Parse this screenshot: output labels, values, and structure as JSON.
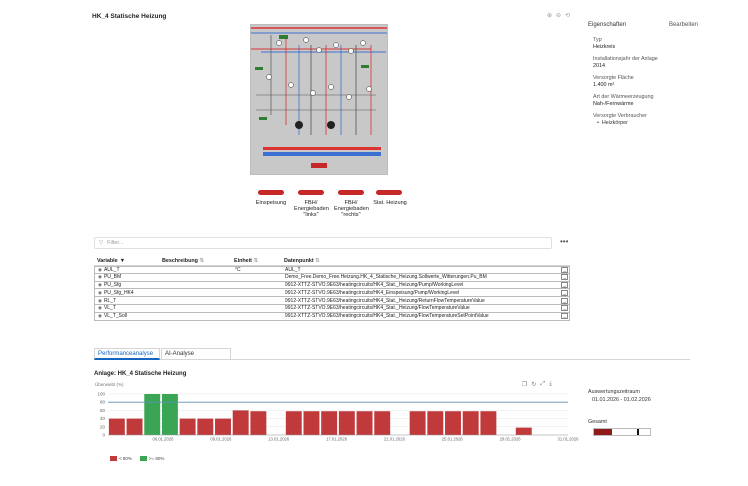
{
  "page": {
    "title": "HK_4 Statische Heizung"
  },
  "header_icons": [
    "zoom-in-icon",
    "zoom-out-icon",
    "reset-icon"
  ],
  "schematic": {
    "labels": [
      "Einspeisung",
      "FBH/\nEnergiebaden\n\"links\"",
      "FBH/\nEnergiebaden\n\"rechts\"",
      "Stat. Heizung"
    ]
  },
  "properties": {
    "heading": "Eigenschaften",
    "edit_label": "Bearbeiten",
    "items": [
      {
        "label": "Typ",
        "value": "Heizkreis"
      },
      {
        "label": "Installationsjahr der Anlage",
        "value": "2014"
      },
      {
        "label": "Versorgte Fläche",
        "value": "1.400 m²"
      },
      {
        "label": "Art der Wärmeerzeugung",
        "value": "Nah-/Fernwärme"
      },
      {
        "label": "Versorgte Verbraucher",
        "list": [
          "Heizkörper"
        ]
      }
    ]
  },
  "filter": {
    "placeholder": "Filter..."
  },
  "table": {
    "columns": [
      "Variable",
      "Beschreibung",
      "Einheit",
      "Datenpunkt"
    ],
    "rows": [
      {
        "variable": "AUL_T",
        "description": "",
        "unit": "°C",
        "datapoint": "AUL_T"
      },
      {
        "variable": "PU_BM",
        "description": "",
        "unit": "",
        "datapoint": "Demo_Free.Demo_Free.Heizung.HK_4_Statische_Heizung.Sollwerte_Witterungen.Pu_BM"
      },
      {
        "variable": "PU_Sfg",
        "description": "",
        "unit": "",
        "datapoint": "9912-XTTZ-STVO.9E63/heatingcircuits/HK4_Stat._Heizung/Pump/WorkingLevel"
      },
      {
        "variable": "PU_Sfg_HK4",
        "description": "",
        "unit": "",
        "datapoint": "9912-XTTZ-STVO.9E63/heatingcircuits/HK4_Einspeisung/Pump/WorkingLevel"
      },
      {
        "variable": "RL_T",
        "description": "",
        "unit": "",
        "datapoint": "9912-XTTZ-STVO.9E63/heatingcircuits/HK4_Stat._Heizung/ReturnFlowTemperatureValue"
      },
      {
        "variable": "VL_T",
        "description": "",
        "unit": "",
        "datapoint": "9912-XTTZ-STVO.9E63/heatingcircuits/HK4_Stat._Heizung/FlowTemperatureValue"
      },
      {
        "variable": "VL_T_Soll",
        "description": "",
        "unit": "",
        "datapoint": "9912-XTTZ-STVO.9E63/heatingcircuits/HK4_Stat._Heizung/FlowTemperatureSetPointValue"
      }
    ]
  },
  "tabs": [
    {
      "label": "Performanceanalyse",
      "active": true
    },
    {
      "label": "AI-Analyse",
      "active": false
    }
  ],
  "analysis": {
    "title": "Anlage: HK_4 Statische Heizung",
    "y_caption": "Überwiebt (%)",
    "evaluation_label": "Auswertungszeitraum",
    "evaluation_range": "01.01.2026 - 01.02.2026",
    "total_label": "Gesamt",
    "total_fraction": 0.32,
    "colors": {
      "red": "#c0393b",
      "green": "#3aa655",
      "line": "#5f8fb5"
    }
  },
  "chart_data": {
    "type": "bar",
    "ylim": [
      0,
      100
    ],
    "yticks": [
      0,
      20,
      40,
      60,
      80,
      100
    ],
    "threshold": 80,
    "xtick_labels": [
      "06.01.2026",
      "09.01.2026",
      "13.01.2026",
      "17.01.2026",
      "21.01.2026",
      "25.01.2026",
      "29.01.2026",
      "31.01.2026"
    ],
    "values": [
      40,
      40,
      100,
      100,
      40,
      40,
      40,
      60,
      58,
      0,
      58,
      58,
      58,
      58,
      58,
      58,
      0,
      58,
      58,
      58,
      58,
      58,
      0,
      18,
      0,
      0
    ],
    "legend": [
      {
        "label": "< 80%",
        "color": "#c0393b"
      },
      {
        "label": ">= 80%",
        "color": "#3aa655"
      }
    ]
  }
}
